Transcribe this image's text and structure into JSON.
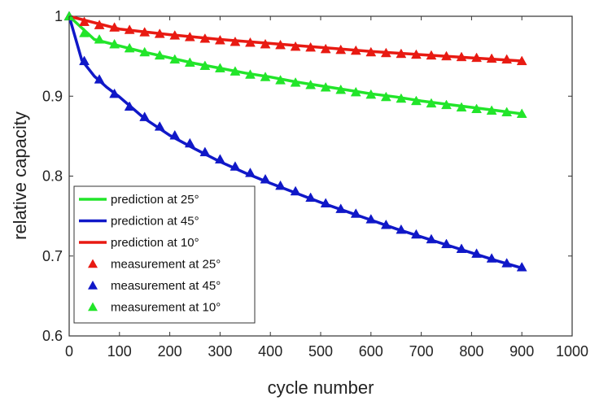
{
  "chart_data": {
    "type": "line",
    "title": "",
    "xlabel": "cycle number",
    "ylabel": "relative capacity",
    "xlim": [
      0,
      1000
    ],
    "ylim": [
      0.6,
      1.0
    ],
    "xticks": [
      0,
      100,
      200,
      300,
      400,
      500,
      600,
      700,
      800,
      900,
      1000
    ],
    "yticks": [
      0.6,
      0.7,
      0.8,
      0.9,
      1.0
    ],
    "ytick_labels": [
      "0.6",
      "0.7",
      "0.8",
      "0.9",
      "1"
    ],
    "grid": false,
    "legend_position": "bottom-left",
    "series": [
      {
        "name": "prediction at 25°",
        "kind": "line",
        "color": "#22e52a",
        "x": [
          0,
          50,
          100,
          150,
          200,
          250,
          300,
          350,
          400,
          450,
          500,
          550,
          600,
          650,
          700,
          750,
          800,
          850,
          900
        ],
        "y": [
          1.0,
          0.971,
          0.963,
          0.955,
          0.948,
          0.941,
          0.935,
          0.929,
          0.924,
          0.918,
          0.913,
          0.908,
          0.903,
          0.899,
          0.894,
          0.89,
          0.886,
          0.882,
          0.878
        ]
      },
      {
        "name": "prediction at 45°",
        "kind": "line",
        "color": "#1018c8",
        "x": [
          0,
          25,
          50,
          75,
          100,
          150,
          200,
          250,
          300,
          350,
          400,
          450,
          500,
          550,
          600,
          650,
          700,
          750,
          800,
          850,
          900
        ],
        "y": [
          1.0,
          0.945,
          0.925,
          0.911,
          0.899,
          0.872,
          0.851,
          0.834,
          0.818,
          0.804,
          0.791,
          0.779,
          0.767,
          0.756,
          0.745,
          0.734,
          0.724,
          0.714,
          0.704,
          0.694,
          0.685
        ]
      },
      {
        "name": "prediction at 10°",
        "kind": "line",
        "color": "#e81a12",
        "x": [
          0,
          100,
          200,
          300,
          400,
          500,
          600,
          700,
          800,
          900
        ],
        "y": [
          1.0,
          0.984,
          0.977,
          0.971,
          0.966,
          0.961,
          0.956,
          0.952,
          0.948,
          0.944
        ]
      },
      {
        "name": "measurement at 25°",
        "kind": "marker",
        "color": "#e81a12",
        "x": [
          0,
          30,
          60,
          90,
          120,
          150,
          180,
          210,
          240,
          270,
          300,
          330,
          360,
          390,
          420,
          450,
          480,
          510,
          540,
          570,
          600,
          630,
          660,
          690,
          720,
          750,
          780,
          810,
          840,
          870,
          900
        ],
        "y": [
          1.0,
          0.993,
          0.989,
          0.986,
          0.983,
          0.98,
          0.978,
          0.976,
          0.974,
          0.972,
          0.97,
          0.968,
          0.967,
          0.965,
          0.964,
          0.962,
          0.961,
          0.959,
          0.958,
          0.957,
          0.955,
          0.954,
          0.953,
          0.952,
          0.951,
          0.95,
          0.949,
          0.948,
          0.947,
          0.946,
          0.944
        ]
      },
      {
        "name": "measurement at 45°",
        "kind": "marker",
        "color": "#1018c8",
        "x": [
          0,
          30,
          60,
          90,
          120,
          150,
          180,
          210,
          240,
          270,
          300,
          330,
          360,
          390,
          420,
          450,
          480,
          510,
          540,
          570,
          600,
          630,
          660,
          690,
          720,
          750,
          780,
          810,
          840,
          870,
          900
        ],
        "y": [
          1.0,
          0.944,
          0.921,
          0.903,
          0.887,
          0.874,
          0.862,
          0.851,
          0.841,
          0.83,
          0.821,
          0.812,
          0.804,
          0.796,
          0.788,
          0.781,
          0.773,
          0.766,
          0.759,
          0.753,
          0.746,
          0.739,
          0.733,
          0.727,
          0.721,
          0.715,
          0.709,
          0.703,
          0.697,
          0.691,
          0.686
        ]
      },
      {
        "name": "measurement at 10°",
        "kind": "marker",
        "color": "#22e52a",
        "x": [
          0,
          30,
          60,
          90,
          120,
          150,
          180,
          210,
          240,
          270,
          300,
          330,
          360,
          390,
          420,
          450,
          480,
          510,
          540,
          570,
          600,
          630,
          660,
          690,
          720,
          750,
          780,
          810,
          840,
          870,
          900
        ],
        "y": [
          1.0,
          0.979,
          0.971,
          0.965,
          0.96,
          0.955,
          0.951,
          0.946,
          0.942,
          0.938,
          0.935,
          0.931,
          0.927,
          0.924,
          0.92,
          0.917,
          0.914,
          0.911,
          0.908,
          0.905,
          0.902,
          0.899,
          0.897,
          0.894,
          0.891,
          0.889,
          0.886,
          0.884,
          0.882,
          0.88,
          0.878
        ]
      }
    ]
  }
}
